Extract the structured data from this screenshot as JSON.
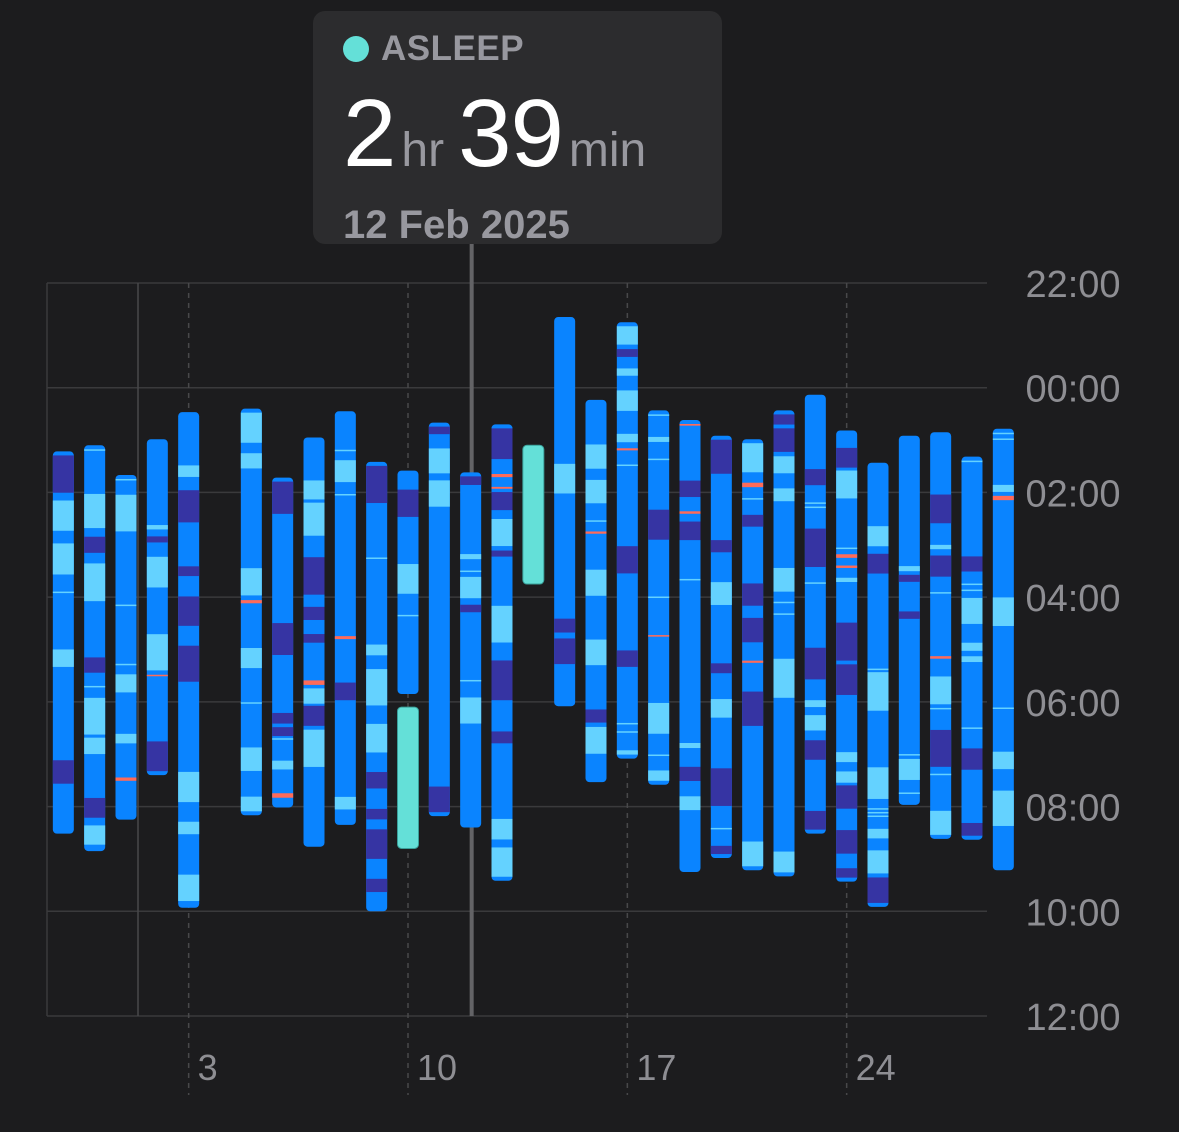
{
  "tooltip": {
    "category": "ASLEEP",
    "hours": "2",
    "hours_unit": "hr",
    "minutes": "39",
    "minutes_unit": "min",
    "date": "12 Feb 2025"
  },
  "colors": {
    "background": "#1c1c1e",
    "awake": "#ff6b59",
    "rem": "#64d2ff",
    "core": "#0a84ff",
    "deep": "#3634a3",
    "asleep_unspecified": "#64e0d8"
  },
  "chart_data": {
    "type": "range-bar",
    "y_axis": {
      "ticks": [
        "22:00",
        "00:00",
        "02:00",
        "04:00",
        "06:00",
        "08:00",
        "10:00",
        "12:00"
      ],
      "range_hours_from_22": [
        0,
        14
      ]
    },
    "x_axis": {
      "ticks": [
        "3",
        "10",
        "17",
        "24"
      ],
      "tick_days": [
        3,
        10,
        17,
        24
      ],
      "range_days": [
        -2,
        28
      ]
    },
    "selected_day": 12,
    "nights": [
      {
        "day": -1,
        "start": "01:13",
        "end": "08:31",
        "stage": "mixed"
      },
      {
        "day": 0,
        "start": "01:06",
        "end": "08:51",
        "stage": "mixed"
      },
      {
        "day": 1,
        "start": "01:40",
        "end": "08:15",
        "stage": "mixed"
      },
      {
        "day": 2,
        "start": "00:59",
        "end": "07:24",
        "stage": "mixed"
      },
      {
        "day": 3,
        "start": "00:28",
        "end": "09:56",
        "stage": "mixed"
      },
      {
        "day": 5,
        "start": "00:24",
        "end": "08:10",
        "stage": "mixed"
      },
      {
        "day": 6,
        "start": "01:43",
        "end": "08:01",
        "stage": "mixed"
      },
      {
        "day": 7,
        "start": "00:57",
        "end": "08:46",
        "stage": "mixed"
      },
      {
        "day": 8,
        "start": "00:27",
        "end": "08:21",
        "stage": "mixed"
      },
      {
        "day": 9,
        "start": "01:25",
        "end": "10:00",
        "stage": "mixed"
      },
      {
        "day": 10,
        "start": "01:35",
        "end": "05:51",
        "stage": "mixed"
      },
      {
        "day": 10,
        "start": "06:06",
        "end": "08:48",
        "stage": "asleep"
      },
      {
        "day": 11,
        "start": "00:40",
        "end": "08:11",
        "stage": "mixed"
      },
      {
        "day": 12,
        "start": "01:37",
        "end": "08:24",
        "stage": "mixed"
      },
      {
        "day": 13,
        "start": "00:42",
        "end": "09:25",
        "stage": "mixed"
      },
      {
        "day": 14,
        "start": "01:06",
        "end": "03:45",
        "stage": "asleep"
      },
      {
        "day": 15,
        "start": "22:39",
        "end": "06:05",
        "stage": "mixed"
      },
      {
        "day": 16,
        "start": "00:14",
        "end": "07:32",
        "stage": "mixed"
      },
      {
        "day": 17,
        "start": "22:45",
        "end": "07:05",
        "stage": "mixed"
      },
      {
        "day": 18,
        "start": "00:26",
        "end": "07:35",
        "stage": "mixed"
      },
      {
        "day": 19,
        "start": "00:37",
        "end": "09:15",
        "stage": "mixed"
      },
      {
        "day": 20,
        "start": "00:55",
        "end": "08:59",
        "stage": "mixed"
      },
      {
        "day": 21,
        "start": "00:59",
        "end": "09:13",
        "stage": "mixed"
      },
      {
        "day": 22,
        "start": "00:26",
        "end": "09:20",
        "stage": "mixed"
      },
      {
        "day": 23,
        "start": "00:08",
        "end": "08:31",
        "stage": "mixed"
      },
      {
        "day": 24,
        "start": "00:49",
        "end": "09:26",
        "stage": "mixed"
      },
      {
        "day": 25,
        "start": "01:26",
        "end": "09:55",
        "stage": "mixed"
      },
      {
        "day": 26,
        "start": "00:55",
        "end": "07:58",
        "stage": "mixed"
      },
      {
        "day": 27,
        "start": "00:51",
        "end": "08:37",
        "stage": "mixed"
      },
      {
        "day": 28,
        "start": "01:19",
        "end": "08:38",
        "stage": "mixed"
      },
      {
        "day": 29,
        "start": "00:47",
        "end": "09:13",
        "stage": "mixed"
      }
    ]
  }
}
